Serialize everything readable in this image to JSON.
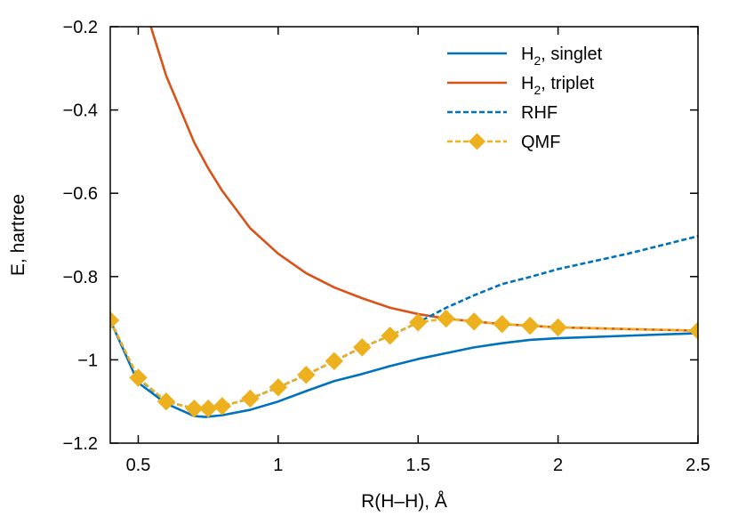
{
  "chart_data": {
    "type": "line",
    "xlabel": "R(H–H), Å",
    "ylabel": "E, hartree",
    "xlim": [
      0.4,
      2.5
    ],
    "ylim": [
      -1.2,
      -0.2
    ],
    "x_ticks": [
      {
        "value": 0.5,
        "label": "0.5"
      },
      {
        "value": 1.0,
        "label": "1"
      },
      {
        "value": 1.5,
        "label": "1.5"
      },
      {
        "value": 2.0,
        "label": "2"
      },
      {
        "value": 2.5,
        "label": "2.5"
      }
    ],
    "y_ticks": [
      {
        "value": -0.2,
        "label": "−0.2"
      },
      {
        "value": -0.4,
        "label": "−0.4"
      },
      {
        "value": -0.6,
        "label": "−0.6"
      },
      {
        "value": -0.8,
        "label": "−0.8"
      },
      {
        "value": -1.0,
        "label": "−1"
      },
      {
        "value": -1.2,
        "label": "−1.2"
      }
    ],
    "grid": false,
    "legend_position": "top-right",
    "series": [
      {
        "name": "H2, singlet",
        "legend_main": "H",
        "legend_sub": "2",
        "legend_rest": ", singlet",
        "color": "#0072bd",
        "style": "solid",
        "marker": "none",
        "x": [
          0.4,
          0.5,
          0.6,
          0.7,
          0.74,
          0.8,
          0.9,
          1.0,
          1.1,
          1.2,
          1.3,
          1.4,
          1.5,
          1.6,
          1.7,
          1.8,
          1.9,
          2.0,
          2.25,
          2.5
        ],
        "y": [
          -0.905,
          -1.055,
          -1.105,
          -1.135,
          -1.137,
          -1.133,
          -1.12,
          -1.1,
          -1.075,
          -1.051,
          -1.034,
          -1.015,
          -0.998,
          -0.984,
          -0.97,
          -0.96,
          -0.952,
          -0.948,
          -0.942,
          -0.936
        ]
      },
      {
        "name": "H2, triplet",
        "legend_main": "H",
        "legend_sub": "2",
        "legend_rest": ", triplet",
        "color": "#d95319",
        "style": "solid",
        "marker": "none",
        "x": [
          0.545,
          0.6,
          0.7,
          0.75,
          0.8,
          0.9,
          1.0,
          1.1,
          1.2,
          1.3,
          1.4,
          1.5,
          1.6,
          1.7,
          1.8,
          1.9,
          2.0,
          2.25,
          2.5
        ],
        "y": [
          -0.2,
          -0.318,
          -0.478,
          -0.54,
          -0.594,
          -0.684,
          -0.745,
          -0.792,
          -0.826,
          -0.852,
          -0.875,
          -0.89,
          -0.901,
          -0.908,
          -0.914,
          -0.918,
          -0.922,
          -0.926,
          -0.93
        ]
      },
      {
        "name": "RHF",
        "color": "#0072bd",
        "style": "dashed",
        "marker": "none",
        "x": [
          0.4,
          0.5,
          0.6,
          0.7,
          0.74,
          0.8,
          0.9,
          1.0,
          1.1,
          1.2,
          1.3,
          1.4,
          1.5,
          1.6,
          1.7,
          1.8,
          1.9,
          2.0,
          2.25,
          2.5
        ],
        "y": [
          -0.905,
          -1.045,
          -1.1,
          -1.117,
          -1.117,
          -1.111,
          -1.093,
          -1.066,
          -1.036,
          -1.003,
          -0.97,
          -0.942,
          -0.91,
          -0.875,
          -0.845,
          -0.818,
          -0.801,
          -0.782,
          -0.745,
          -0.703
        ]
      },
      {
        "name": "QMF",
        "color": "#edb120",
        "style": "dashed",
        "marker": "diamond",
        "x": [
          0.4,
          0.5,
          0.6,
          0.7,
          0.75,
          0.8,
          0.9,
          1.0,
          1.1,
          1.2,
          1.3,
          1.4,
          1.5,
          1.6,
          1.7,
          1.8,
          1.9,
          2.0,
          2.5
        ],
        "y": [
          -0.905,
          -1.043,
          -1.1,
          -1.117,
          -1.117,
          -1.111,
          -1.093,
          -1.066,
          -1.036,
          -1.003,
          -0.97,
          -0.942,
          -0.91,
          -0.901,
          -0.908,
          -0.914,
          -0.918,
          -0.922,
          -0.93
        ]
      }
    ]
  }
}
